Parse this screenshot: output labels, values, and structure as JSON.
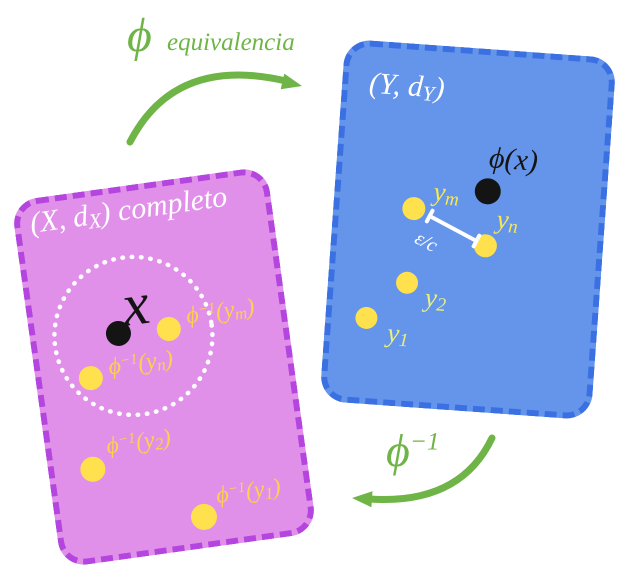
{
  "colors": {
    "green": "#6fb447",
    "blue-fill": "#6495ea",
    "blue-dash": "#3b70e3",
    "magenta-fill": "#e190ea",
    "magenta-dash": "#b445de",
    "yellow": "#ffe14d",
    "label-yellow": "#f8ea4e",
    "label-pale": "#e9f07b",
    "label-gold": "#ffd04a",
    "white": "#ffffff",
    "black": "#141414"
  },
  "forward_map": {
    "symbol": "ϕ",
    "annotation": "equivalencia"
  },
  "inverse_map": {
    "symbol": [
      {
        "t": "ϕ"
      },
      {
        "t": "−1",
        "s": "sup"
      }
    ]
  },
  "space_x": {
    "title": [
      {
        "t": "(X, d"
      },
      {
        "t": "X",
        "s": "sub"
      },
      {
        "t": ") completo"
      }
    ],
    "center_point_label": "x",
    "preimage_ym": [
      {
        "t": "ϕ"
      },
      {
        "t": "−1",
        "s": "sup"
      },
      {
        "t": "(y"
      },
      {
        "t": "m",
        "s": "sub"
      },
      {
        "t": ")"
      }
    ],
    "preimage_yn": [
      {
        "t": "ϕ"
      },
      {
        "t": "−1",
        "s": "sup"
      },
      {
        "t": "(y"
      },
      {
        "t": "n",
        "s": "sub"
      },
      {
        "t": ")"
      }
    ],
    "preimage_y2": [
      {
        "t": "ϕ"
      },
      {
        "t": "−1",
        "s": "sup"
      },
      {
        "t": "(y"
      },
      {
        "t": "2",
        "s": "sub"
      },
      {
        "t": ")"
      }
    ],
    "preimage_y1": [
      {
        "t": "ϕ"
      },
      {
        "t": "−1",
        "s": "sup"
      },
      {
        "t": "(y"
      },
      {
        "t": "1",
        "s": "sub"
      },
      {
        "t": ")"
      }
    ]
  },
  "space_y": {
    "title": [
      {
        "t": "(Y, d"
      },
      {
        "t": "Y",
        "s": "sub"
      },
      {
        "t": ")"
      }
    ],
    "image_point_label": "ϕ(x)",
    "ym": [
      {
        "t": "y"
      },
      {
        "t": "m",
        "s": "sub"
      }
    ],
    "yn": [
      {
        "t": "y"
      },
      {
        "t": "n",
        "s": "sub"
      }
    ],
    "y2": [
      {
        "t": "y"
      },
      {
        "t": "2",
        "s": "sub"
      }
    ],
    "y1": [
      {
        "t": "y"
      },
      {
        "t": "1",
        "s": "sub"
      }
    ],
    "distance_label": "ε/c"
  }
}
